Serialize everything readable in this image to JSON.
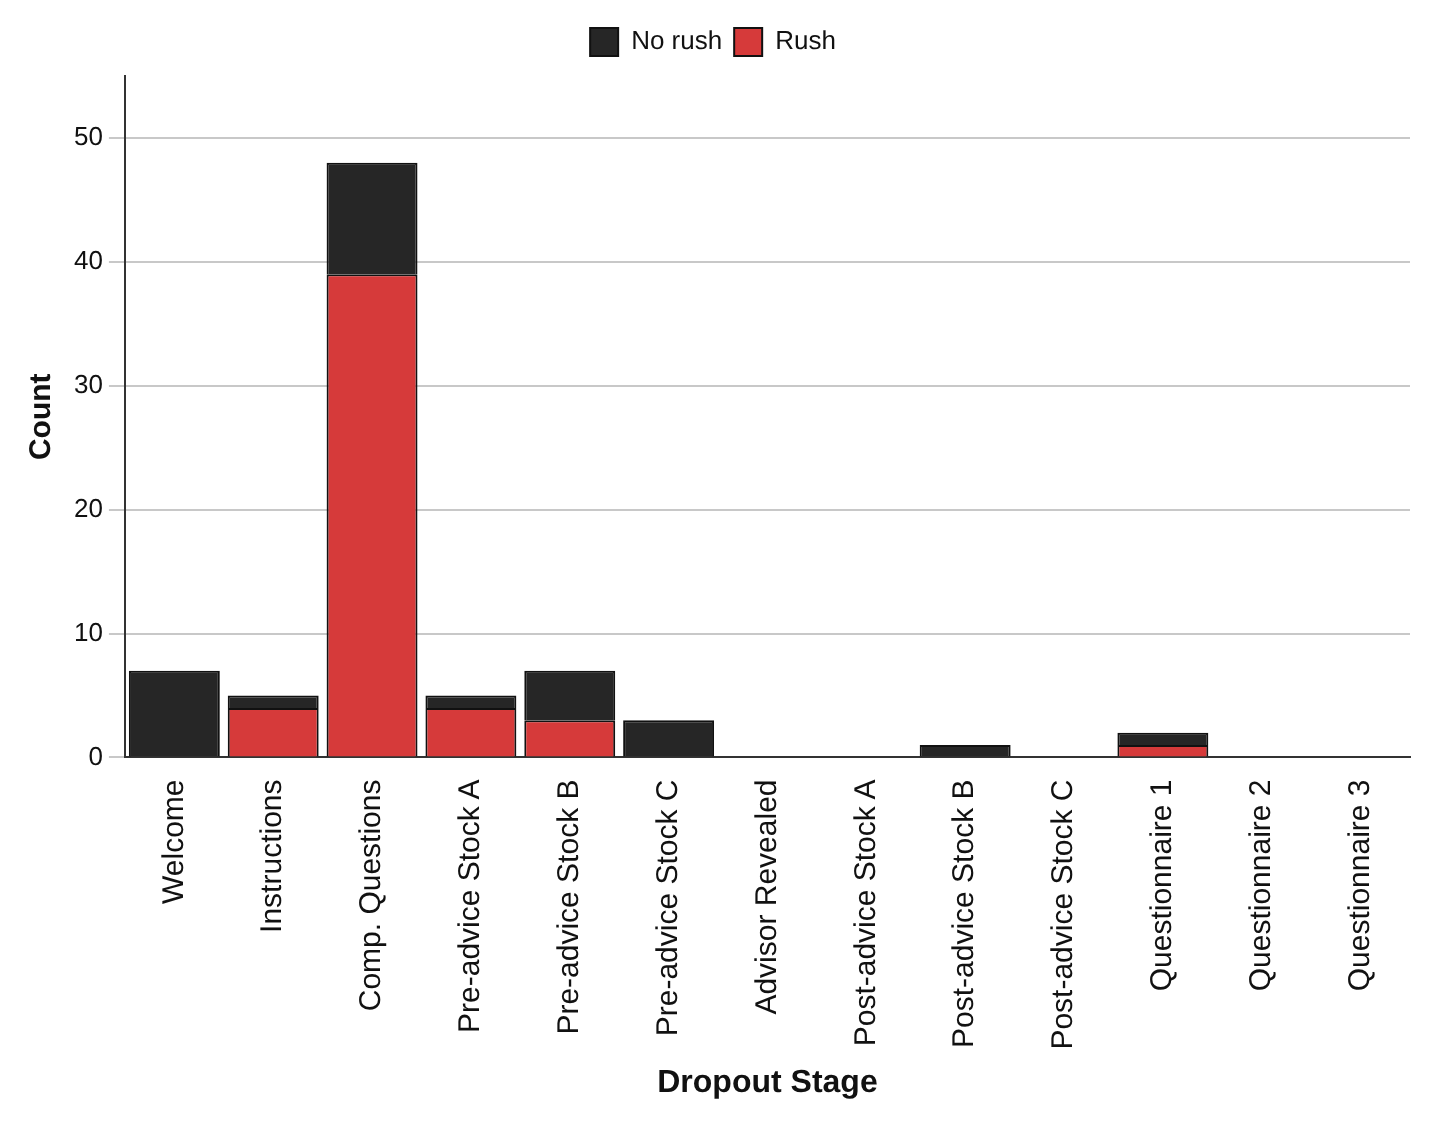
{
  "chart_data": {
    "type": "bar",
    "xlabel": "Dropout Stage",
    "ylabel": "Count",
    "categories": [
      "Welcome",
      "Instructions",
      "Comp. Questions",
      "Pre-advice Stock A",
      "Pre-advice Stock B",
      "Pre-advice Stock C",
      "Advisor Revealed",
      "Post-advice Stock A",
      "Post-advice Stock B",
      "Post-advice Stock C",
      "Questionnaire 1",
      "Questionnaire 2",
      "Questionnaire 3"
    ],
    "series": [
      {
        "name": "Rush",
        "color": "#d63a3a",
        "values": [
          0,
          4,
          39,
          4,
          3,
          0,
          0,
          0,
          0,
          0,
          1,
          0,
          0
        ]
      },
      {
        "name": "No rush",
        "color": "#262626",
        "values": [
          7,
          1,
          9,
          1,
          4,
          3,
          0,
          0,
          1,
          0,
          1,
          0,
          0
        ]
      }
    ],
    "stacked": true,
    "ylim": [
      0,
      55
    ],
    "yticks": [
      0,
      10,
      20,
      30,
      40,
      50
    ],
    "grid": "y",
    "legend": "top"
  }
}
